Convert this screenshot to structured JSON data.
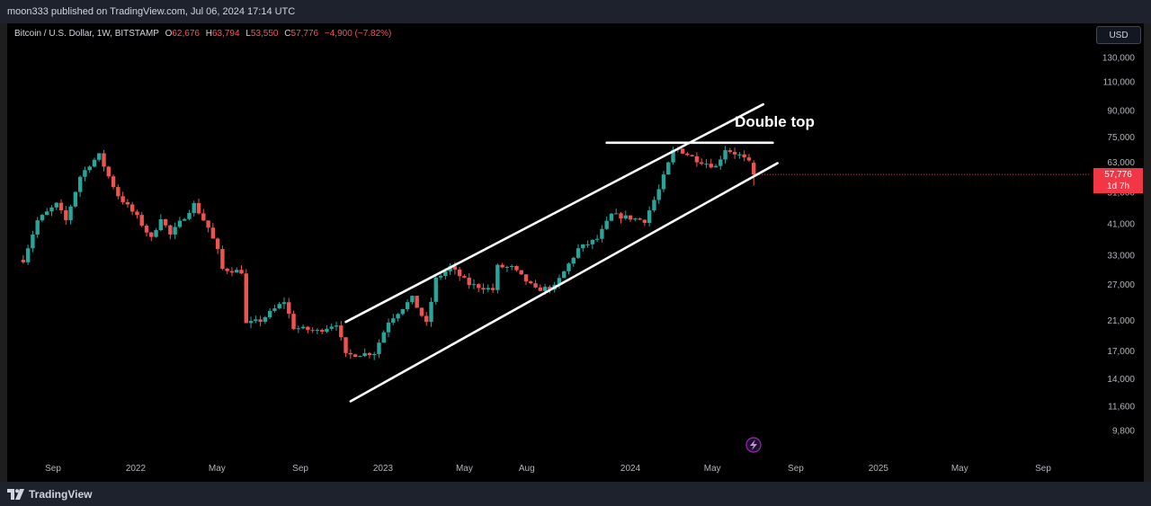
{
  "header": {
    "published": "moon333 published on TradingView.com, Jul 06, 2024 17:14 UTC"
  },
  "legend": {
    "symbol": "Bitcoin / U.S. Dollar, 1W, BITSTAMP",
    "open_label": "O",
    "open": "62,676",
    "high_label": "H",
    "high": "63,794",
    "low_label": "L",
    "low": "53,550",
    "close_label": "C",
    "close": "57,776",
    "change": "−4,900 (−7.82%)"
  },
  "currency_button": "USD",
  "price_tag": {
    "price": "57,776",
    "countdown": "1d 7h"
  },
  "footer": {
    "brand": "TradingView"
  },
  "colors": {
    "up": "#26a69a",
    "down": "#ef5350",
    "background": "#000000",
    "drawing": "#ffffff"
  },
  "chart_data": {
    "type": "candlestick",
    "symbol": "Bitcoin / U.S. Dollar",
    "interval": "1W",
    "exchange": "BITSTAMP",
    "y_scale": "log",
    "ylim": [
      8500,
      150000
    ],
    "y_ticks": [
      9800,
      11600,
      14000,
      17000,
      21000,
      27000,
      33000,
      41000,
      51000,
      63000,
      75000,
      90000,
      110000,
      130000
    ],
    "y_tick_labels": [
      "9,800",
      "11,600",
      "14,000",
      "17,000",
      "21,000",
      "27,000",
      "33,000",
      "41,000",
      "51,000",
      "63,000",
      "75,000",
      "90,000",
      "110,000",
      "130,000"
    ],
    "x_ticks": [
      "2021-09-01",
      "2022-01-01",
      "2022-05-01",
      "2022-09-01",
      "2023-01-01",
      "2023-05-01",
      "2023-08-01",
      "2024-01-01",
      "2024-05-01",
      "2024-09-01",
      "2025-01-01",
      "2025-05-01",
      "2025-09-01"
    ],
    "x_tick_labels": [
      "Sep",
      "2022",
      "May",
      "Sep",
      "2023",
      "May",
      "Aug",
      "2024",
      "May",
      "Sep",
      "2025",
      "May",
      "Sep"
    ],
    "price_anchors": [
      [
        "2021-07-19",
        32000
      ],
      [
        "2021-07-26",
        35000
      ],
      [
        "2021-08-09",
        42000
      ],
      [
        "2021-09-06",
        47000
      ],
      [
        "2021-09-20",
        42000
      ],
      [
        "2021-10-11",
        57000
      ],
      [
        "2021-10-25",
        62000
      ],
      [
        "2021-11-08",
        66000
      ],
      [
        "2021-11-22",
        57000
      ],
      [
        "2021-12-06",
        50000
      ],
      [
        "2022-01-03",
        43000
      ],
      [
        "2022-01-24",
        37000
      ],
      [
        "2022-02-07",
        43000
      ],
      [
        "2022-02-21",
        38000
      ],
      [
        "2022-03-28",
        47000
      ],
      [
        "2022-04-18",
        40000
      ],
      [
        "2022-05-02",
        34000
      ],
      [
        "2022-05-09",
        30000
      ],
      [
        "2022-06-06",
        29500
      ],
      [
        "2022-06-13",
        20500
      ],
      [
        "2022-07-04",
        21000
      ],
      [
        "2022-08-08",
        24000
      ],
      [
        "2022-08-22",
        20000
      ],
      [
        "2022-09-26",
        19500
      ],
      [
        "2022-10-24",
        20600
      ],
      [
        "2022-11-07",
        16500
      ],
      [
        "2022-12-19",
        16800
      ],
      [
        "2023-01-09",
        20900
      ],
      [
        "2023-02-13",
        24500
      ],
      [
        "2023-03-06",
        20500
      ],
      [
        "2023-03-20",
        28000
      ],
      [
        "2023-04-10",
        30400
      ],
      [
        "2023-05-08",
        27000
      ],
      [
        "2023-06-12",
        26000
      ],
      [
        "2023-06-19",
        30500
      ],
      [
        "2023-07-10",
        30300
      ],
      [
        "2023-08-14",
        26000
      ],
      [
        "2023-09-11",
        26500
      ],
      [
        "2023-10-16",
        34500
      ],
      [
        "2023-11-13",
        37000
      ],
      [
        "2023-12-04",
        43700
      ],
      [
        "2024-01-08",
        42500
      ],
      [
        "2024-01-22",
        42000
      ],
      [
        "2024-02-12",
        52000
      ],
      [
        "2024-03-04",
        68000
      ],
      [
        "2024-03-11",
        69000
      ],
      [
        "2024-04-08",
        64000
      ],
      [
        "2024-05-06",
        61000
      ],
      [
        "2024-05-20",
        69000
      ],
      [
        "2024-06-10",
        66000
      ],
      [
        "2024-06-24",
        62676
      ],
      [
        "2024-07-01",
        57776
      ]
    ],
    "last_candle": {
      "open": 62676,
      "high": 63794,
      "low": 53550,
      "close": 57776
    },
    "annotations": [
      {
        "type": "trendline",
        "role": "channel-upper",
        "from": [
          "2022-11-07",
          20800
        ],
        "to": [
          "2024-07-15",
          94000
        ]
      },
      {
        "type": "trendline",
        "role": "channel-lower",
        "from": [
          "2022-11-14",
          12000
        ],
        "to": [
          "2024-08-05",
          62500
        ]
      },
      {
        "type": "horizontal",
        "from": [
          "2023-11-27",
          72000
        ],
        "to": [
          "2024-07-29",
          72000
        ]
      },
      {
        "type": "text",
        "text": "Double top",
        "at": [
          "2024-06-03",
          80500
        ]
      }
    ]
  }
}
